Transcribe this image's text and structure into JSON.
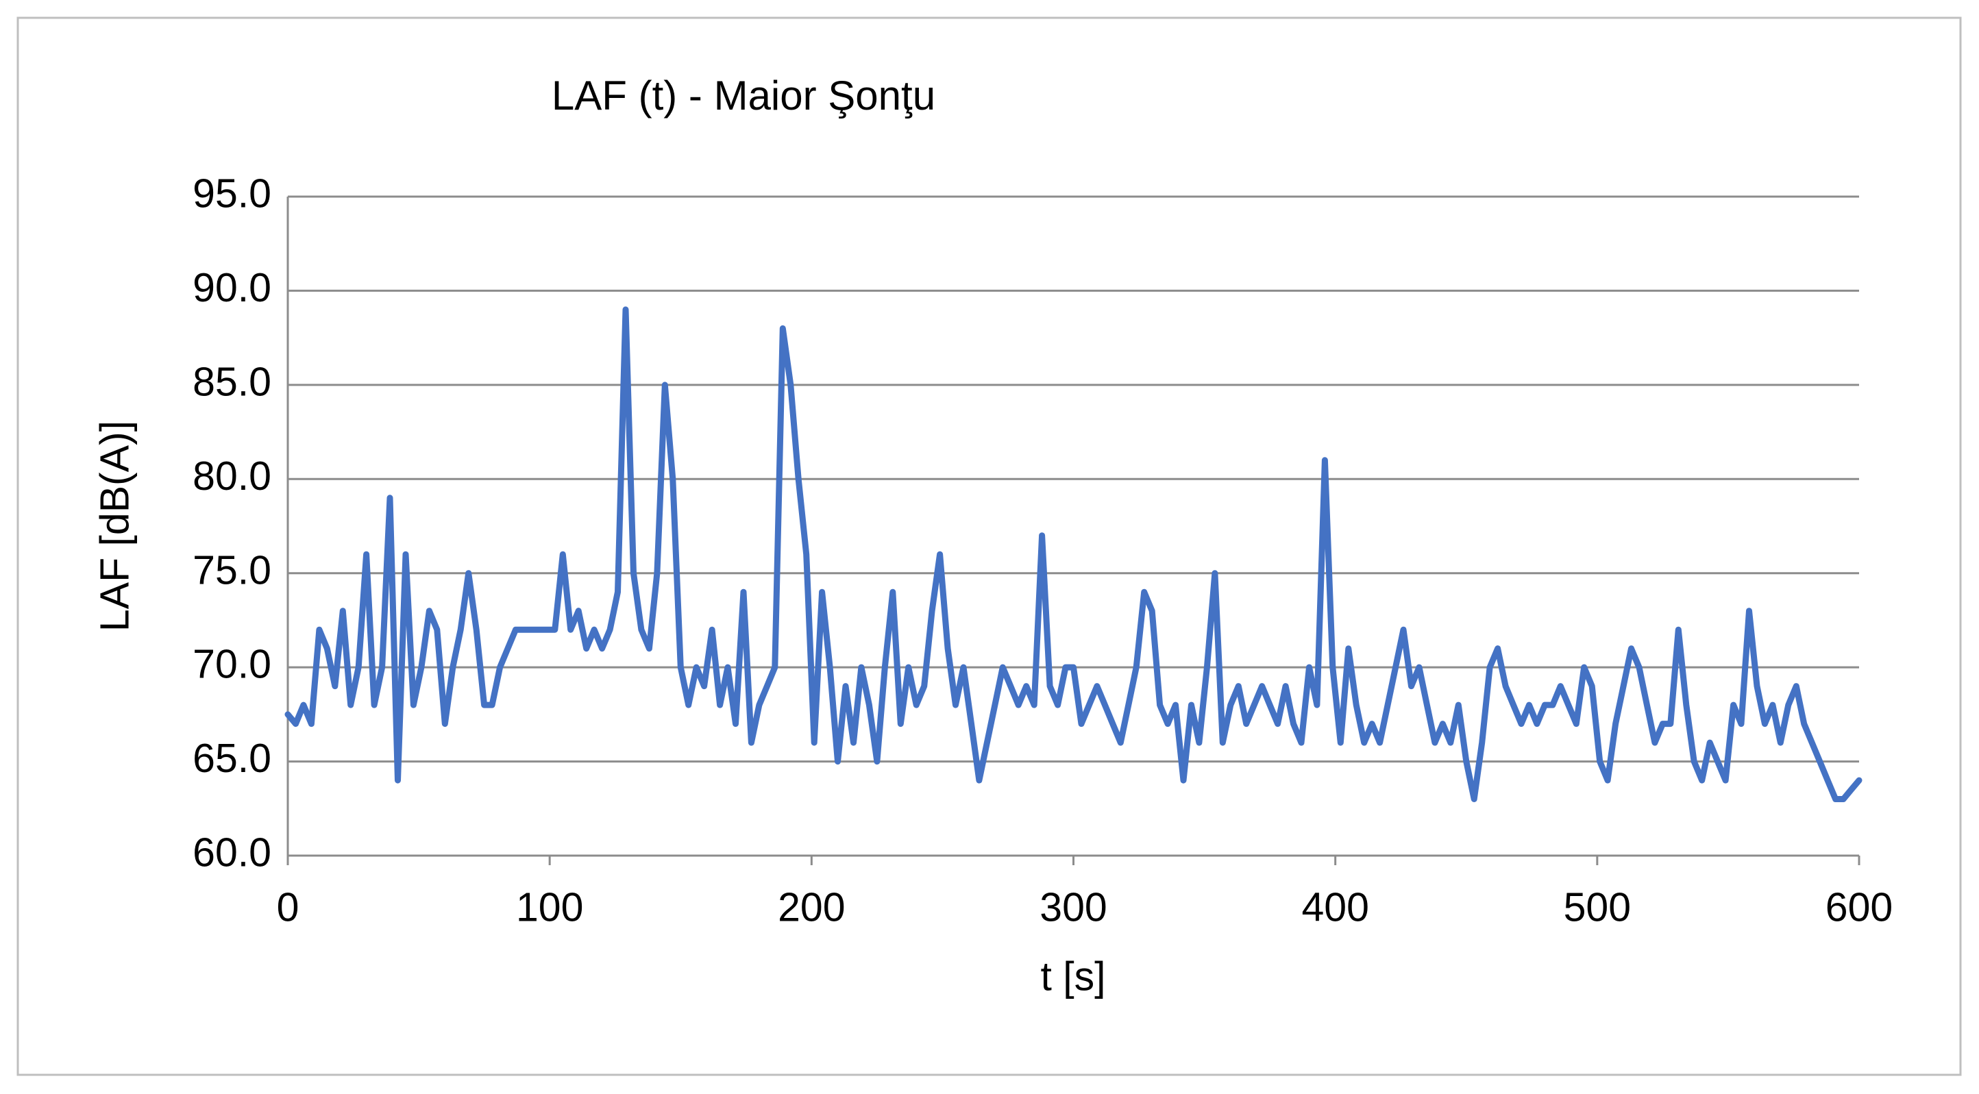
{
  "chart_data": {
    "type": "line",
    "title": "LAF (t) - Maior Şonţu",
    "x_label": "t [s]",
    "y_label": "LAF [dB(A)]",
    "x": [
      0,
      3,
      6,
      9,
      12,
      15,
      18,
      21,
      24,
      27,
      30,
      33,
      36,
      39,
      42,
      45,
      48,
      51,
      54,
      57,
      60,
      63,
      66,
      69,
      72,
      75,
      78,
      81,
      84,
      87,
      90,
      93,
      96,
      99,
      102,
      105,
      108,
      111,
      114,
      117,
      120,
      123,
      126,
      129,
      132,
      135,
      138,
      141,
      144,
      147,
      150,
      153,
      156,
      159,
      162,
      165,
      168,
      171,
      174,
      177,
      180,
      183,
      186,
      189,
      192,
      195,
      198,
      201,
      204,
      207,
      210,
      213,
      216,
      219,
      222,
      225,
      228,
      231,
      234,
      237,
      240,
      243,
      246,
      249,
      252,
      255,
      258,
      261,
      264,
      267,
      270,
      273,
      276,
      279,
      282,
      285,
      288,
      291,
      294,
      297,
      300,
      303,
      306,
      309,
      312,
      315,
      318,
      321,
      324,
      327,
      330,
      333,
      336,
      339,
      342,
      345,
      348,
      351,
      354,
      357,
      360,
      363,
      366,
      369,
      372,
      375,
      378,
      381,
      384,
      387,
      390,
      393,
      396,
      399,
      402,
      405,
      408,
      411,
      414,
      417,
      420,
      423,
      426,
      429,
      432,
      435,
      438,
      441,
      444,
      447,
      450,
      453,
      456,
      459,
      462,
      465,
      468,
      471,
      474,
      477,
      480,
      483,
      486,
      489,
      492,
      495,
      498,
      501,
      504,
      507,
      510,
      513,
      516,
      519,
      522,
      525,
      528,
      531,
      534,
      537,
      540,
      543,
      546,
      549,
      552,
      555,
      558,
      561,
      564,
      567,
      570,
      573,
      576,
      579,
      582,
      585,
      588,
      591,
      594,
      597,
      600
    ],
    "series": [
      {
        "name": "LAF",
        "color": "#4472c4",
        "values": [
          67.5,
          67,
          68,
          67,
          72,
          71,
          69,
          73,
          68,
          70,
          76,
          68,
          70,
          79,
          64,
          76,
          68,
          70,
          73,
          72,
          67,
          70,
          72,
          75,
          72,
          68,
          68,
          70,
          71,
          72,
          72,
          72,
          72,
          72,
          72,
          76,
          72,
          73,
          71,
          72,
          71,
          72,
          74,
          89,
          75,
          72,
          71,
          75,
          85,
          80,
          70,
          68,
          70,
          69,
          72,
          68,
          70,
          67,
          74,
          66,
          68,
          69,
          70,
          88,
          85,
          80,
          76,
          66,
          74,
          70,
          65,
          69,
          66,
          70,
          68,
          65,
          70,
          74,
          67,
          70,
          68,
          69,
          73,
          76,
          71,
          68,
          70,
          67,
          64,
          66,
          68,
          70,
          69,
          68,
          69,
          68,
          77,
          69,
          68,
          70,
          70,
          67,
          68,
          69,
          68,
          67,
          66,
          68,
          70,
          74,
          73,
          68,
          67,
          68,
          64,
          68,
          66,
          70,
          75,
          66,
          68,
          69,
          67,
          68,
          69,
          68,
          67,
          69,
          67,
          66,
          70,
          68,
          81,
          70,
          66,
          71,
          68,
          66,
          67,
          66,
          68,
          70,
          72,
          69,
          70,
          68,
          66,
          67,
          66,
          68,
          65,
          63,
          66,
          70,
          71,
          69,
          68,
          67,
          68,
          67,
          68,
          68,
          69,
          68,
          67,
          70,
          69,
          65,
          64,
          67,
          69,
          71,
          70,
          68,
          66,
          67,
          67,
          72,
          68,
          65,
          64,
          66,
          65,
          64,
          68,
          67,
          73,
          69,
          67,
          68,
          66,
          68,
          69,
          67,
          66,
          65,
          64,
          63,
          63,
          63.5,
          64
        ]
      }
    ],
    "xlim": [
      0,
      600
    ],
    "xticks": [
      0,
      100,
      200,
      300,
      400,
      500,
      600
    ],
    "ylim": [
      60,
      95
    ],
    "yticks": [
      {
        "value": 60,
        "label": "60.0"
      },
      {
        "value": 65,
        "label": "65.0"
      },
      {
        "value": 70,
        "label": "70.0"
      },
      {
        "value": 75,
        "label": "75.0"
      },
      {
        "value": 80,
        "label": "80.0"
      },
      {
        "value": 85,
        "label": "85.0"
      },
      {
        "value": 90,
        "label": "90.0"
      },
      {
        "value": 95,
        "label": "95.0"
      }
    ],
    "grid": true
  }
}
